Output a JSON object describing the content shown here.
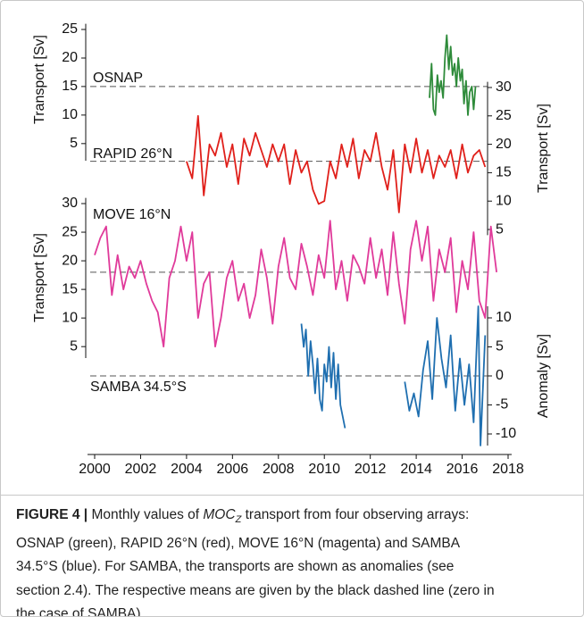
{
  "chart_data": {
    "type": "line",
    "xlim": [
      2000,
      2018
    ],
    "xticks": [
      2000,
      2002,
      2004,
      2006,
      2008,
      2010,
      2012,
      2014,
      2016,
      2018
    ],
    "series": [
      {
        "name": "OSNAP",
        "color": "#2e8b3a",
        "ylabel": "Transport [Sv]",
        "mean": 15,
        "ylim": [
          2,
          26
        ],
        "yticks": [
          5,
          10,
          15,
          20,
          25
        ],
        "x": [
          2014.58,
          2014.67,
          2014.75,
          2014.83,
          2014.92,
          2015.0,
          2015.08,
          2015.17,
          2015.25,
          2015.33,
          2015.42,
          2015.5,
          2015.58,
          2015.67,
          2015.75,
          2015.83,
          2015.92,
          2016.0,
          2016.08,
          2016.17,
          2016.25,
          2016.33,
          2016.42,
          2016.5,
          2016.58
        ],
        "values": [
          13,
          19,
          11,
          10,
          17,
          14,
          16,
          13,
          20,
          24,
          18,
          22,
          17,
          19,
          15,
          20,
          16,
          18,
          12,
          16,
          10,
          14,
          15,
          11,
          15
        ]
      },
      {
        "name": "RAPID 26°N",
        "color": "#e0201b",
        "ylabel": "Transport [Sv]",
        "mean": 17,
        "ylim": [
          4,
          31
        ],
        "yticks": [
          5,
          10,
          15,
          20,
          25,
          30
        ],
        "x": [
          2004.0,
          2004.25,
          2004.5,
          2004.75,
          2005.0,
          2005.25,
          2005.5,
          2005.75,
          2006.0,
          2006.25,
          2006.5,
          2006.75,
          2007.0,
          2007.25,
          2007.5,
          2007.75,
          2008.0,
          2008.25,
          2008.5,
          2008.75,
          2009.0,
          2009.25,
          2009.5,
          2009.75,
          2010.0,
          2010.25,
          2010.5,
          2010.75,
          2011.0,
          2011.25,
          2011.5,
          2011.75,
          2012.0,
          2012.25,
          2012.5,
          2012.75,
          2013.0,
          2013.25,
          2013.5,
          2013.75,
          2014.0,
          2014.25,
          2014.5,
          2014.75,
          2015.0,
          2015.25,
          2015.5,
          2015.75,
          2016.0,
          2016.25,
          2016.5,
          2016.75,
          2017.0
        ],
        "values": [
          17,
          14,
          25,
          11,
          20,
          18,
          22,
          16,
          20,
          13,
          21,
          18,
          22,
          19,
          16,
          20,
          17,
          20,
          13,
          19,
          15,
          17,
          12,
          9.5,
          10,
          17,
          14,
          20,
          16,
          21,
          14,
          19,
          17,
          22,
          16,
          12,
          19,
          8,
          20,
          15,
          21,
          15,
          19,
          14,
          18,
          16,
          19,
          14,
          20,
          15,
          18,
          19,
          16
        ]
      },
      {
        "name": "MOVE 16°N",
        "color": "#e03a9a",
        "ylabel": "Transport [Sv]",
        "mean": 18,
        "ylim": [
          3,
          31
        ],
        "yticks": [
          5,
          10,
          15,
          20,
          25,
          30
        ],
        "x": [
          2000.0,
          2000.25,
          2000.5,
          2000.75,
          2001.0,
          2001.25,
          2001.5,
          2001.75,
          2002.0,
          2002.25,
          2002.5,
          2002.75,
          2003.0,
          2003.25,
          2003.5,
          2003.75,
          2004.0,
          2004.25,
          2004.5,
          2004.75,
          2005.0,
          2005.25,
          2005.5,
          2005.75,
          2006.0,
          2006.25,
          2006.5,
          2006.75,
          2007.0,
          2007.25,
          2007.5,
          2007.75,
          2008.0,
          2008.25,
          2008.5,
          2008.75,
          2009.0,
          2009.25,
          2009.5,
          2009.75,
          2010.0,
          2010.25,
          2010.5,
          2010.75,
          2011.0,
          2011.25,
          2011.5,
          2011.75,
          2012.0,
          2012.25,
          2012.5,
          2012.75,
          2013.0,
          2013.25,
          2013.5,
          2013.75,
          2014.0,
          2014.25,
          2014.5,
          2014.75,
          2015.0,
          2015.25,
          2015.5,
          2015.75,
          2016.0,
          2016.25,
          2016.5,
          2016.75,
          2017.0,
          2017.25,
          2017.5
        ],
        "values": [
          21,
          24,
          26,
          14,
          21,
          15,
          19,
          17,
          20,
          16,
          13,
          11,
          5,
          17,
          20,
          26,
          20,
          25,
          10,
          16,
          18,
          5,
          10,
          17,
          20,
          13,
          16,
          10,
          14,
          22,
          17,
          9,
          19,
          24,
          17,
          15,
          23,
          19,
          14,
          21,
          17,
          27,
          15,
          20,
          13,
          21,
          19,
          16,
          24,
          17,
          22,
          14,
          25,
          16,
          9,
          22,
          27,
          20,
          26,
          13,
          22,
          18,
          24,
          11,
          20,
          15,
          25,
          13,
          10,
          26,
          18
        ]
      },
      {
        "name": "SAMBA 34.5°S",
        "color": "#1f6fb0",
        "ylabel": "Anomaly [Sv]",
        "mean": 0,
        "ylim": [
          -12,
          12
        ],
        "yticks": [
          -10,
          -5,
          0,
          5,
          10
        ],
        "x": [
          2009.0,
          2009.1,
          2009.2,
          2009.3,
          2009.4,
          2009.5,
          2009.6,
          2009.7,
          2009.8,
          2009.9,
          2010.0,
          2010.1,
          2010.2,
          2010.3,
          2010.4,
          2010.5,
          2010.6,
          2010.7,
          2010.8,
          2010.9,
          2012.0,
          2013.5,
          2013.7,
          2013.9,
          2014.1,
          2014.3,
          2014.5,
          2014.7,
          2014.9,
          2015.1,
          2015.3,
          2015.5,
          2015.7,
          2015.9,
          2016.1,
          2016.3,
          2016.5,
          2016.7,
          2016.8,
          2017.0
        ],
        "values": [
          9,
          5,
          8,
          0,
          6,
          2,
          -3,
          3,
          -4,
          -6,
          2,
          -1,
          5,
          -2,
          4,
          -4,
          2,
          -5,
          -7,
          -9,
          null,
          -1,
          -6,
          -3,
          -7,
          1,
          6,
          -4,
          10,
          3,
          -2,
          7,
          -6,
          3,
          -5,
          2,
          -8,
          12,
          -12,
          7
        ]
      }
    ]
  },
  "caption": {
    "label": "FIGURE 4 |",
    "parts": [
      "Monthly values of ",
      "MOC",
      "Z",
      " transport from four observing arrays:"
    ],
    "lines": [
      "OSNAP (green), RAPID 26°N (red), MOVE 16°N (magenta) and SAMBA",
      "34.5°S (blue). For SAMBA, the transports are shown as anomalies (see",
      "section 2.4). The respective means are given by the black dashed line (zero in",
      "the case of SAMBA)."
    ]
  }
}
